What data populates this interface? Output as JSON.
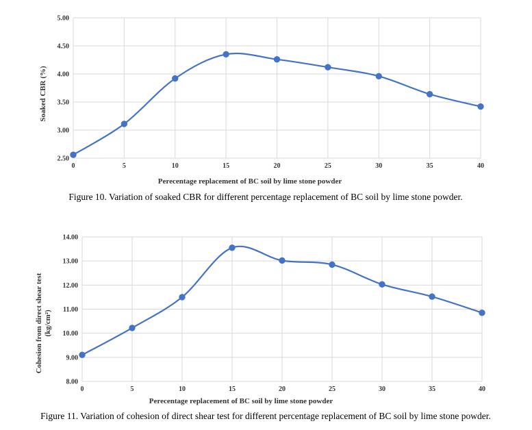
{
  "chart_data": [
    {
      "type": "line",
      "x": [
        0,
        5,
        10,
        15,
        20,
        25,
        30,
        35,
        40
      ],
      "series": [
        {
          "values": [
            2.56,
            3.11,
            3.92,
            4.35,
            4.26,
            4.12,
            3.96,
            3.64,
            3.42
          ]
        }
      ],
      "xlabel": "Perecentage replacement of BC soil by lime stone powder",
      "ylabel": "Soaked CBR (%)",
      "ylim": [
        2.5,
        5.0
      ],
      "yticks": [
        "2.50",
        "3.00",
        "3.50",
        "4.00",
        "4.50",
        "5.00"
      ],
      "xticks": [
        "0",
        "5",
        "10",
        "15",
        "20",
        "25",
        "30",
        "35",
        "40"
      ],
      "grid": true,
      "smooth": true,
      "color": "#4472c4",
      "caption": "Figure 10. Variation of soaked CBR for different percentage replacement of BC soil by lime stone powder."
    },
    {
      "type": "line",
      "x": [
        0,
        5,
        10,
        15,
        20,
        25,
        30,
        35,
        40
      ],
      "series": [
        {
          "values": [
            9.1,
            10.22,
            11.5,
            13.55,
            13.02,
            12.85,
            12.03,
            11.52,
            10.85
          ]
        }
      ],
      "xlabel": "Perecentage replacement of BC soil by lime stone powder",
      "ylabel_line1": "Cohesion from direct shear test",
      "ylabel_line2": "(kg/cm²)",
      "ylim": [
        8.0,
        14.0
      ],
      "yticks": [
        "8.00",
        "9.00",
        "10.00",
        "11.00",
        "12.00",
        "13.00",
        "14.00"
      ],
      "xticks": [
        "0",
        "5",
        "10",
        "15",
        "20",
        "25",
        "30",
        "35",
        "40"
      ],
      "grid": true,
      "smooth": true,
      "color": "#4472c4",
      "caption": "Figure 11. Variation of cohesion of direct shear test for different percentage replacement of BC soil by lime stone powder."
    }
  ]
}
